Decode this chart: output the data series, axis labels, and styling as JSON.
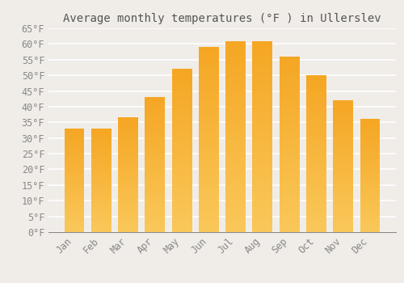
{
  "title": "Average monthly temperatures (°F ) in Ullerslev",
  "months": [
    "Jan",
    "Feb",
    "Mar",
    "Apr",
    "May",
    "Jun",
    "Jul",
    "Aug",
    "Sep",
    "Oct",
    "Nov",
    "Dec"
  ],
  "values": [
    33,
    33,
    36.5,
    43,
    52,
    59,
    61,
    61,
    56,
    50,
    42,
    36
  ],
  "bar_color_top": "#F5A623",
  "bar_color_bottom": "#FAC85A",
  "bar_edge_color": "none",
  "background_color": "#F0EDE8",
  "plot_bg_color": "#F0EDE8",
  "grid_color": "#FFFFFF",
  "ylim": [
    0,
    65
  ],
  "yticks": [
    0,
    5,
    10,
    15,
    20,
    25,
    30,
    35,
    40,
    45,
    50,
    55,
    60,
    65
  ],
  "ytick_labels": [
    "0°F",
    "5°F",
    "10°F",
    "15°F",
    "20°F",
    "25°F",
    "30°F",
    "35°F",
    "40°F",
    "45°F",
    "50°F",
    "55°F",
    "60°F",
    "65°F"
  ],
  "title_fontsize": 10,
  "tick_fontsize": 8.5,
  "title_color": "#555555",
  "tick_color": "#888888",
  "bar_width": 0.75
}
